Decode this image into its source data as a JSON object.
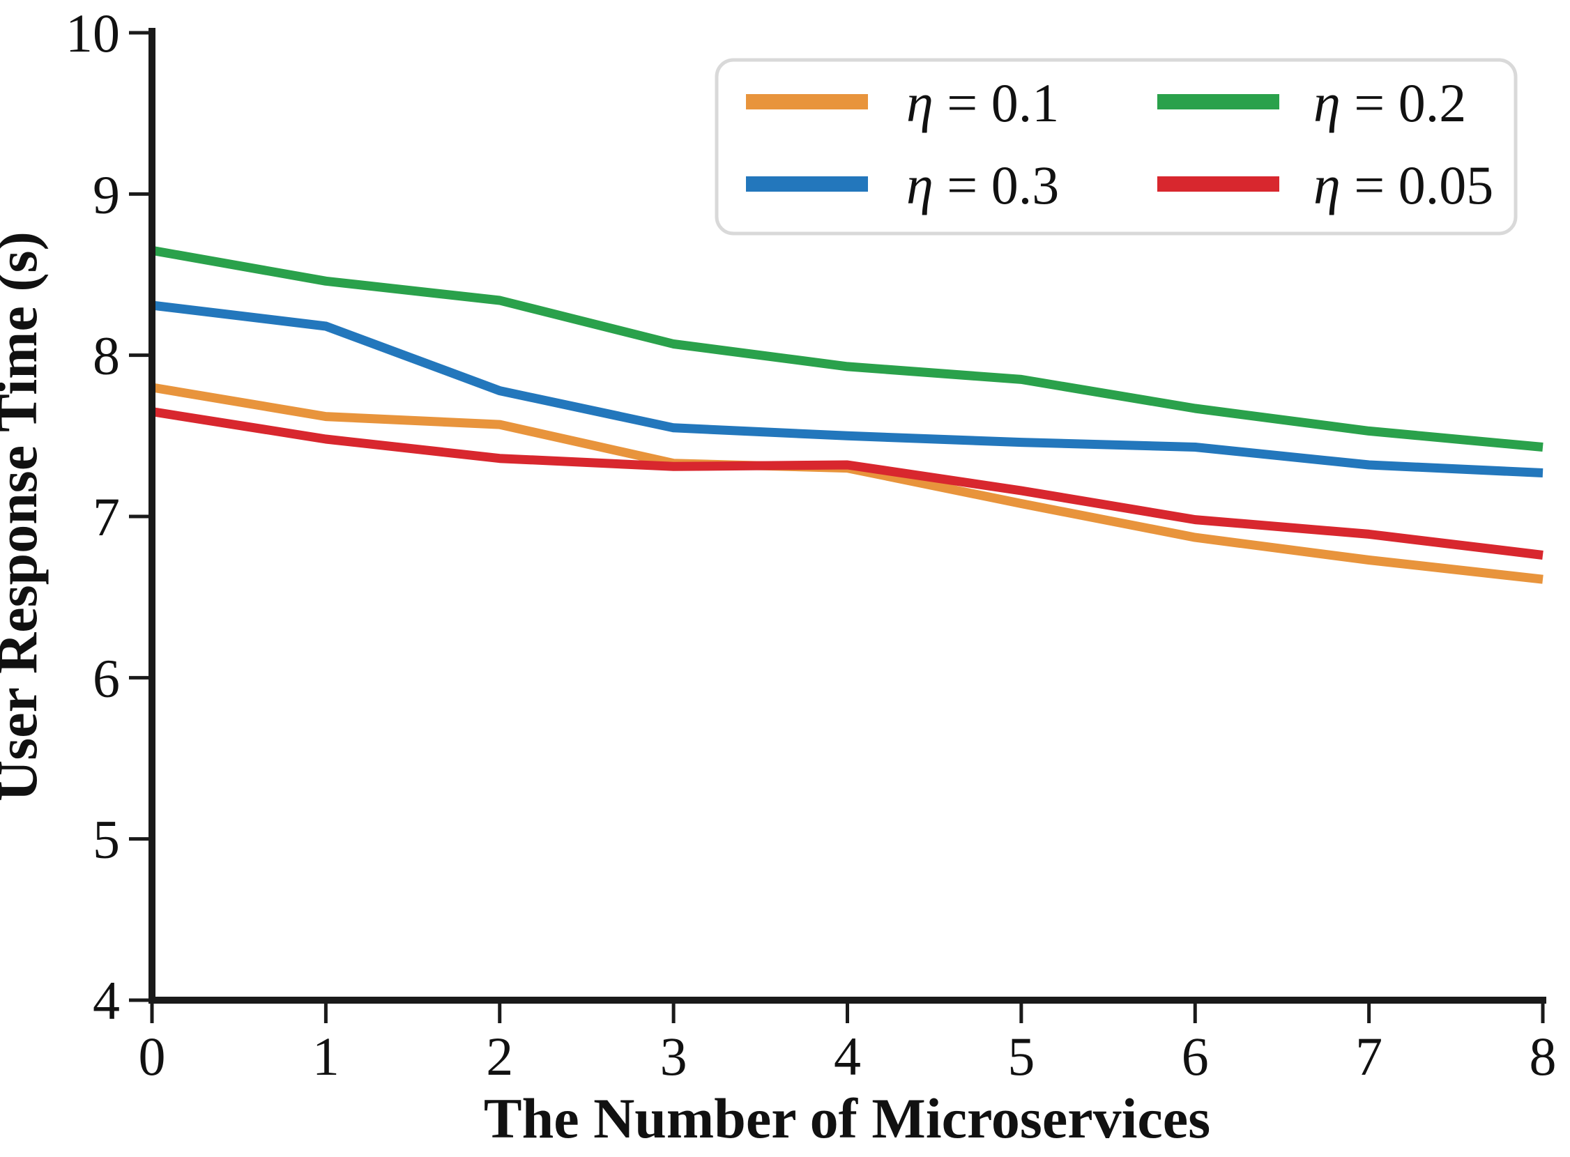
{
  "figure": {
    "background": "#ffffff",
    "axis_color": "#1a1a1a",
    "legend_border_color": "#d9d9d9"
  },
  "chart_data": {
    "type": "line",
    "title": "",
    "xlabel": "The Number of Microservices",
    "ylabel": "User Response Time (s)",
    "xlim": [
      0,
      8
    ],
    "ylim": [
      4,
      10
    ],
    "grid": false,
    "legend_position": "upper right",
    "legend_columns": 2,
    "x_ticks": [
      "0",
      "1",
      "2",
      "3",
      "4",
      "5",
      "6",
      "7",
      "8"
    ],
    "y_ticks": [
      "4",
      "5",
      "6",
      "7",
      "8",
      "9",
      "10"
    ],
    "x": [
      0,
      1,
      2,
      3,
      4,
      5,
      6,
      7,
      8
    ],
    "series": [
      {
        "name": "η = 0.1",
        "color": "#E8943C",
        "values": [
          7.8,
          7.62,
          7.57,
          7.33,
          7.3,
          7.08,
          6.87,
          6.73,
          6.61
        ]
      },
      {
        "name": "η = 0.3",
        "color": "#2377BC",
        "values": [
          8.31,
          8.18,
          7.78,
          7.55,
          7.5,
          7.46,
          7.43,
          7.32,
          7.27
        ]
      },
      {
        "name": "η = 0.2",
        "color": "#2AA14B",
        "values": [
          8.65,
          8.46,
          8.34,
          8.07,
          7.93,
          7.85,
          7.67,
          7.53,
          7.43
        ]
      },
      {
        "name": "η = 0.05",
        "color": "#D8272E",
        "values": [
          7.65,
          7.48,
          7.36,
          7.31,
          7.32,
          7.16,
          6.98,
          6.89,
          6.76
        ]
      }
    ]
  },
  "legend": {
    "items": [
      {
        "label": "η = 0.1",
        "color": "#E8943C"
      },
      {
        "label": "η = 0.2",
        "color": "#2AA14B"
      },
      {
        "label": "η = 0.3",
        "color": "#2377BC"
      },
      {
        "label": "η = 0.05",
        "color": "#D8272E"
      }
    ]
  }
}
